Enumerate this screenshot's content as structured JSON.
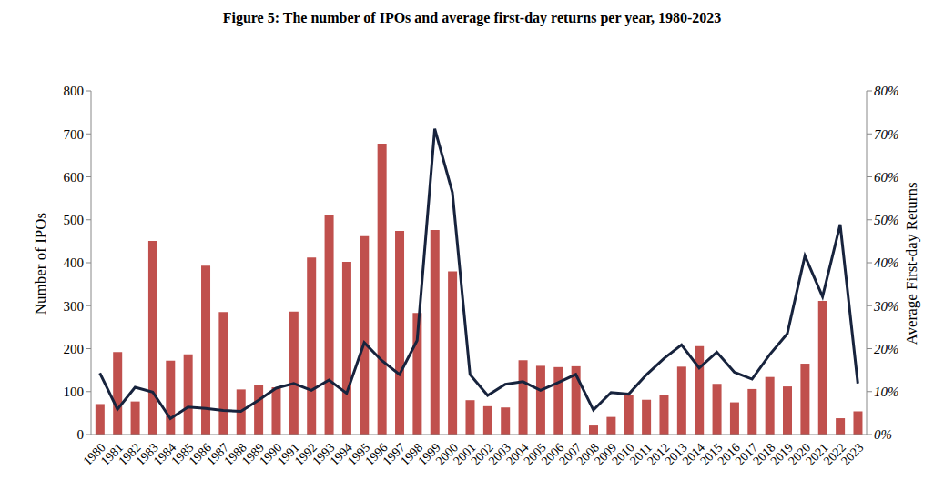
{
  "chart_data": {
    "type": "bar",
    "title": "Figure 5: The number of IPOs and average first-day returns per year, 1980-2023",
    "ylabel": "Number of IPOs",
    "y2label": "Average First-day Returns",
    "categories": [
      "1980",
      "1981",
      "1982",
      "1983",
      "1984",
      "1985",
      "1986",
      "1987",
      "1988",
      "1989",
      "1990",
      "1991",
      "1992",
      "1993",
      "1994",
      "1995",
      "1996",
      "1997",
      "1998",
      "1999",
      "2000",
      "2001",
      "2002",
      "2003",
      "2004",
      "2005",
      "2006",
      "2007",
      "2008",
      "2009",
      "2010",
      "2011",
      "2012",
      "2013",
      "2014",
      "2015",
      "2016",
      "2017",
      "2018",
      "2019",
      "2020",
      "2021",
      "2022",
      "2023"
    ],
    "ylim": [
      0,
      800
    ],
    "yticks": [
      0,
      100,
      200,
      300,
      400,
      500,
      600,
      700,
      800
    ],
    "y2lim": [
      0,
      80
    ],
    "y2ticks": [
      {
        "value": 0,
        "label": "0%"
      },
      {
        "value": 10,
        "label": "10%"
      },
      {
        "value": 20,
        "label": "20%"
      },
      {
        "value": 30,
        "label": "30%"
      },
      {
        "value": 40,
        "label": "40%"
      },
      {
        "value": 50,
        "label": "50%"
      },
      {
        "value": 60,
        "label": "60%"
      },
      {
        "value": 70,
        "label": "70%"
      },
      {
        "value": 80,
        "label": "80%"
      }
    ],
    "grid": false,
    "series": [
      {
        "type": "bar",
        "color": "#c0504d",
        "values": [
          71,
          192,
          77,
          451,
          172,
          187,
          393,
          285,
          105,
          116,
          110,
          286,
          412,
          510,
          402,
          462,
          677,
          474,
          283,
          476,
          380,
          80,
          66,
          63,
          173,
          160,
          157,
          159,
          21,
          41,
          91,
          81,
          93,
          158,
          206,
          118,
          75,
          106,
          134,
          112,
          165,
          311,
          38,
          54
        ]
      },
      {
        "type": "line",
        "axis": "y2",
        "color": "#17233d",
        "values": [
          14.3,
          5.9,
          11.0,
          9.9,
          3.7,
          6.4,
          6.1,
          5.6,
          5.4,
          8.0,
          10.8,
          11.9,
          10.3,
          12.7,
          9.6,
          21.4,
          17.2,
          14.0,
          21.9,
          71.2,
          56.4,
          14.0,
          9.1,
          11.7,
          12.3,
          10.3,
          12.1,
          14.0,
          5.7,
          9.8,
          9.4,
          13.9,
          17.7,
          20.9,
          15.5,
          19.2,
          14.5,
          12.9,
          18.6,
          23.5,
          41.6,
          32.1,
          48.9,
          11.9
        ]
      }
    ]
  }
}
